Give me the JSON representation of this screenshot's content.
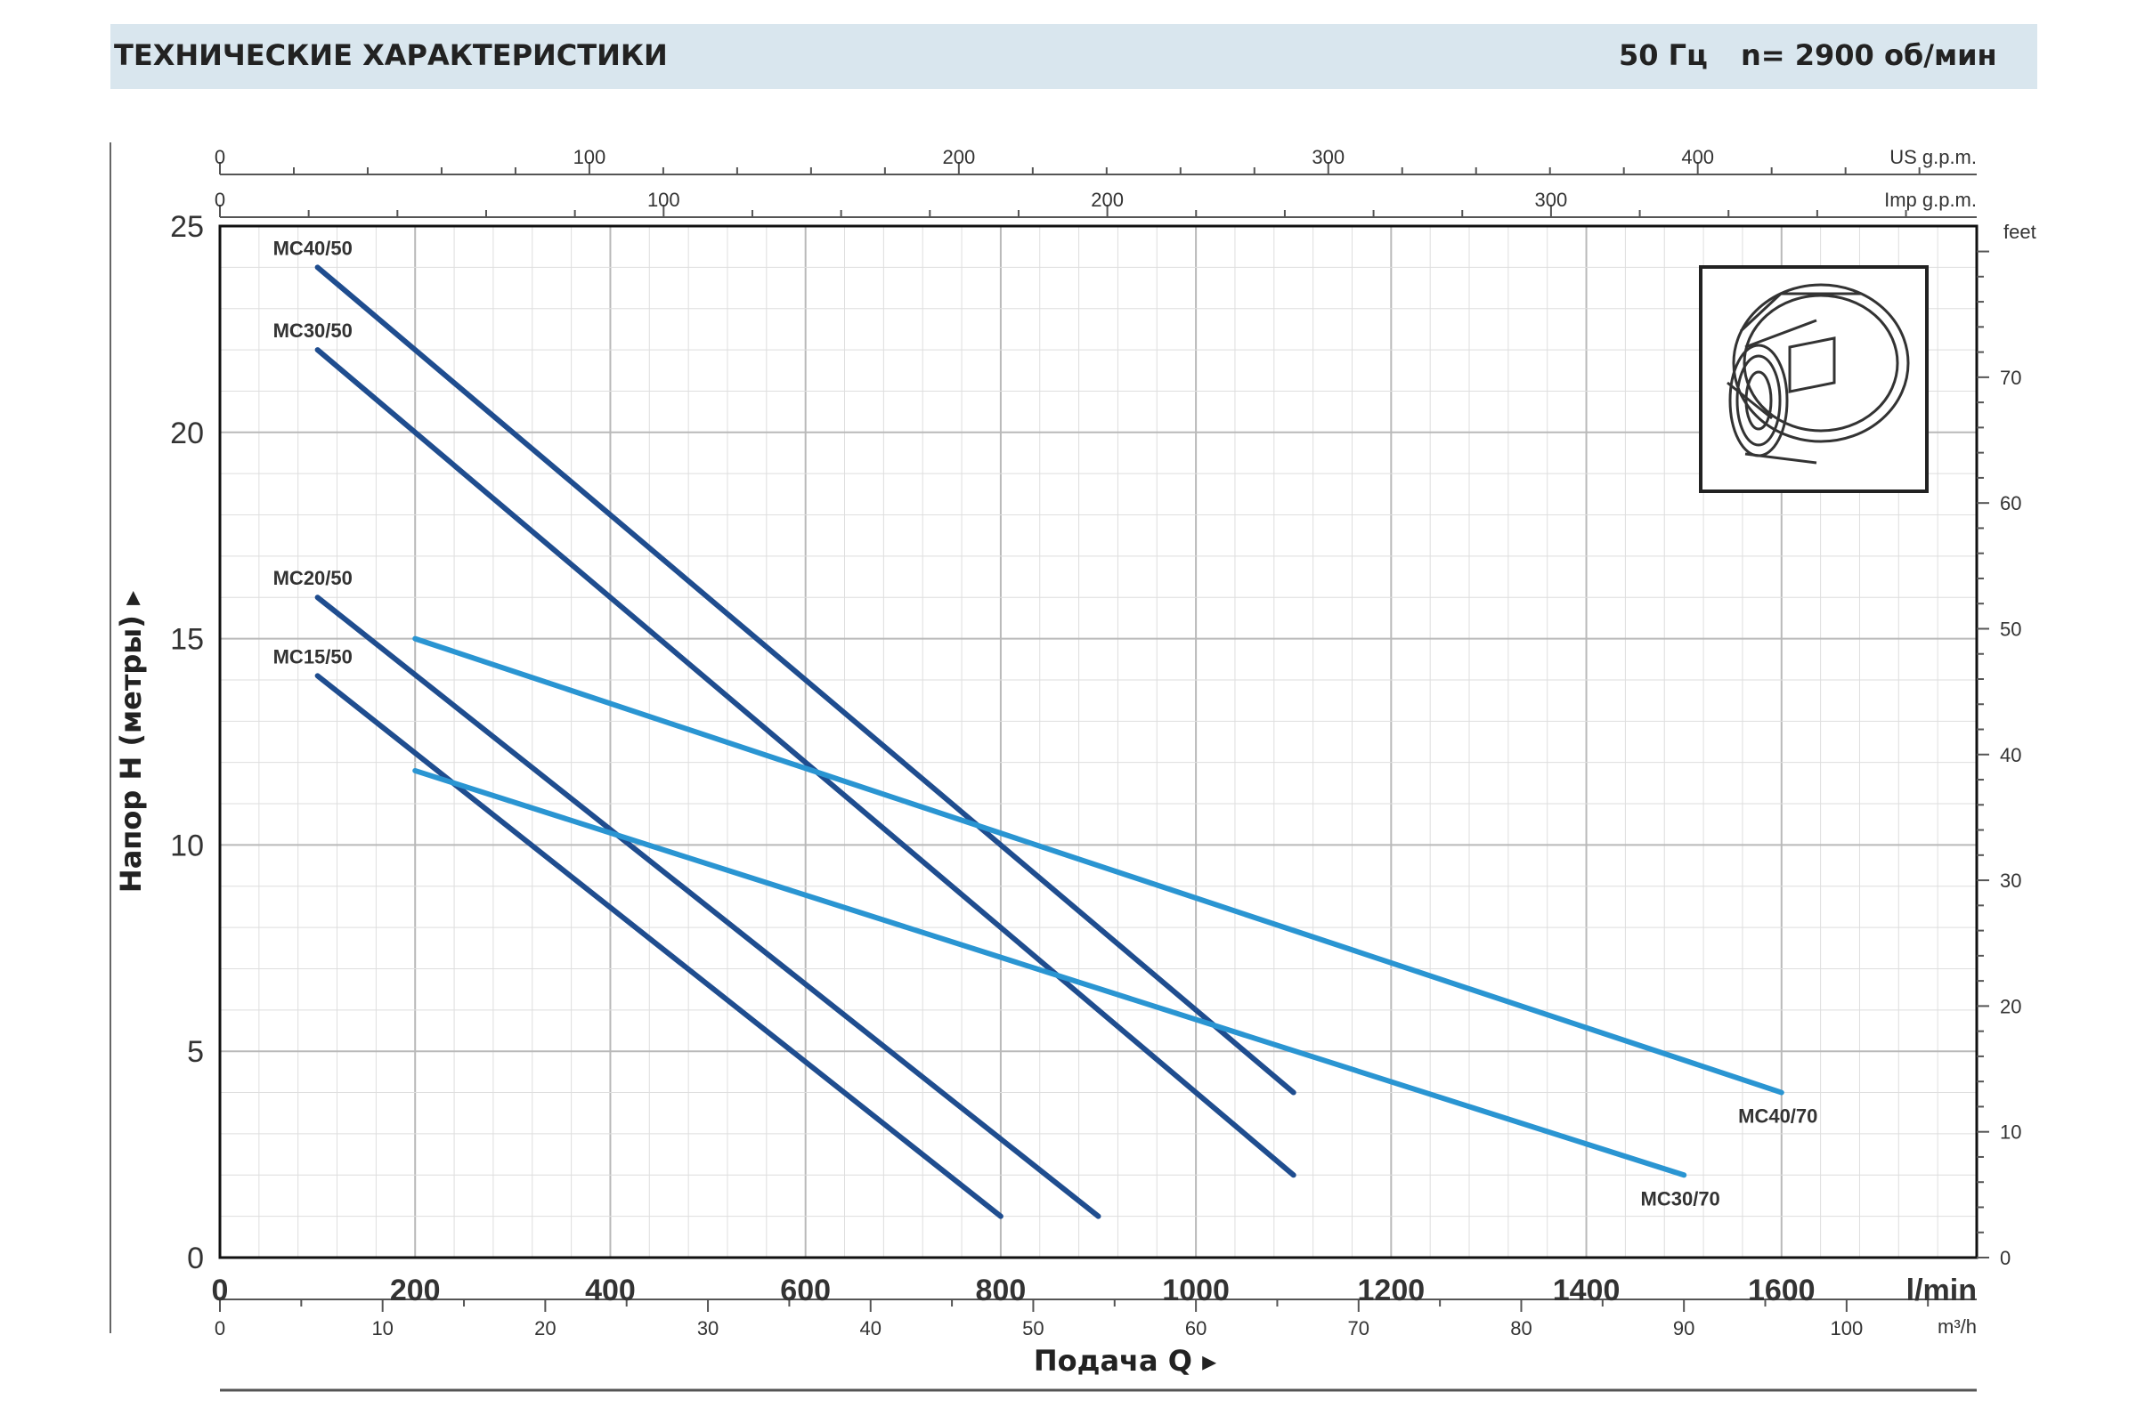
{
  "header": {
    "title": "ТЕХНИЧЕСКИЕ ХАРАКТЕРИСТИКИ",
    "freq": "50 Гц",
    "speed": "n= 2900  об/мин"
  },
  "colors": {
    "dark_series": "#1f4d8f",
    "light_series": "#2a95d2",
    "grid_major": "#b9b9b9",
    "grid_minor": "#dedede",
    "banner_bg": "#d9e6ee"
  },
  "pump_icon": "impeller-housing-icon",
  "chart_data": {
    "type": "line",
    "xlabel": "Подача Q",
    "ylabel": "Напор H (метры)",
    "x_unit": "l/min",
    "xlim": [
      0,
      1800
    ],
    "ylim": [
      0,
      25
    ],
    "x_ticks": [
      0,
      200,
      400,
      600,
      800,
      1000,
      1200,
      1400,
      1600
    ],
    "y_ticks": [
      0,
      5,
      10,
      15,
      20,
      25
    ],
    "secondary_axes": {
      "us_gpm": {
        "unit": "US g.p.m.",
        "ticks": [
          0,
          100,
          200,
          300,
          400
        ]
      },
      "imp_gpm": {
        "unit": "Imp g.p.m.",
        "ticks": [
          0,
          100,
          200,
          300
        ]
      },
      "m3h": {
        "unit": "m³/h",
        "ticks": [
          0,
          10,
          20,
          30,
          40,
          50,
          60,
          70,
          80,
          90,
          100
        ]
      },
      "feet": {
        "unit": "feet",
        "ticks": [
          0,
          10,
          20,
          30,
          40,
          50,
          60,
          70
        ]
      }
    },
    "grid": true,
    "series": [
      {
        "name": "MC40/50",
        "color": "#1f4d8f",
        "label_pos": "start",
        "x": [
          100,
          1100
        ],
        "y": [
          24,
          4
        ]
      },
      {
        "name": "MC30/50",
        "color": "#1f4d8f",
        "label_pos": "start",
        "x": [
          100,
          1100
        ],
        "y": [
          22,
          2
        ]
      },
      {
        "name": "MC20/50",
        "color": "#1f4d8f",
        "label_pos": "start",
        "x": [
          100,
          900
        ],
        "y": [
          16,
          1
        ]
      },
      {
        "name": "MC15/50",
        "color": "#1f4d8f",
        "label_pos": "start",
        "x": [
          100,
          800
        ],
        "y": [
          14.1,
          1
        ]
      },
      {
        "name": "MC40/70",
        "color": "#2a95d2",
        "label_pos": "end",
        "x": [
          200,
          1600
        ],
        "y": [
          15,
          4
        ]
      },
      {
        "name": "MC30/70",
        "color": "#2a95d2",
        "label_pos": "end",
        "x": [
          200,
          1500
        ],
        "y": [
          11.8,
          2
        ]
      }
    ]
  }
}
